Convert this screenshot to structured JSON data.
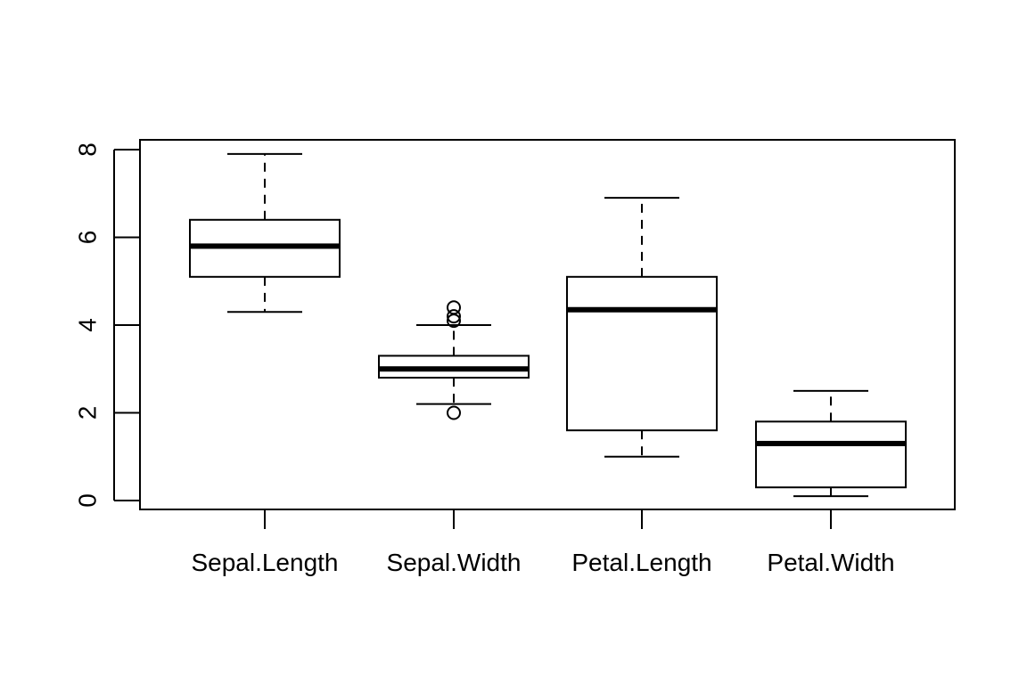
{
  "chart_data": {
    "type": "boxplot",
    "title": "",
    "xlabel": "",
    "ylabel": "",
    "ylim": [
      0,
      8
    ],
    "yticks": [
      0,
      2,
      4,
      6,
      8
    ],
    "grid": false,
    "categories": [
      "Sepal.Length",
      "Sepal.Width",
      "Petal.Length",
      "Petal.Width"
    ],
    "boxes": [
      {
        "label": "Sepal.Length",
        "whisker_low": 4.3,
        "q1": 5.1,
        "median": 5.8,
        "q3": 6.4,
        "whisker_high": 7.9,
        "outliers": []
      },
      {
        "label": "Sepal.Width",
        "whisker_low": 2.2,
        "q1": 2.8,
        "median": 3.0,
        "q3": 3.3,
        "whisker_high": 4.0,
        "outliers": [
          2.0,
          4.1,
          4.2,
          4.4
        ]
      },
      {
        "label": "Petal.Length",
        "whisker_low": 1.0,
        "q1": 1.6,
        "median": 4.35,
        "q3": 5.1,
        "whisker_high": 6.9,
        "outliers": []
      },
      {
        "label": "Petal.Width",
        "whisker_low": 0.1,
        "q1": 0.3,
        "median": 1.3,
        "q3": 1.8,
        "whisker_high": 2.5,
        "outliers": []
      }
    ]
  }
}
